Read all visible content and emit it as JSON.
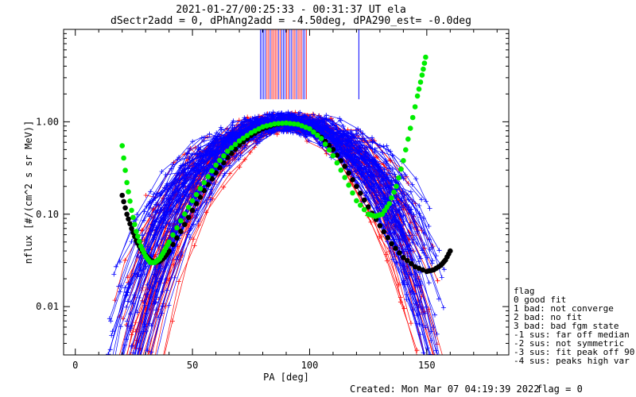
{
  "chart_data": {
    "type": "line",
    "title_line1": "2021-01-27/00:25:33 - 00:31:37 UT ela",
    "title_line2": "dSectr2add = 0, dPhAng2add = -4.50deg, dPA290_est=  -0.0deg",
    "xlabel": "PA [deg]",
    "ylabel": "nflux [#/(cm^2 s sr MeV)]",
    "xlim": [
      -5,
      185
    ],
    "ylim": [
      0.003,
      10
    ],
    "log_y": true,
    "x_ticks": [
      0,
      50,
      100,
      150
    ],
    "y_ticks": [
      {
        "value": 0.01,
        "label": "0.01"
      },
      {
        "value": 0.1,
        "label": "0.10"
      },
      {
        "value": 1,
        "label": "1.00"
      }
    ],
    "bundle_colors": {
      "red": "#ff0000",
      "blue": "#0000ff"
    },
    "peak_normalized_value": 1.0,
    "vertical_marker_pa_range": [
      79,
      99
    ],
    "vertical_marker_outlier_pa": 121,
    "green_fit_curve": {
      "color": "#00ee00",
      "x": [
        20,
        22,
        24,
        26,
        28,
        30,
        32,
        34,
        36,
        38,
        40,
        45,
        50,
        55,
        60,
        65,
        70,
        75,
        80,
        85,
        90,
        95,
        100,
        105,
        110,
        115,
        120,
        125,
        128,
        131,
        134,
        137,
        140,
        143,
        146,
        148,
        149.5
      ],
      "y": [
        0.55,
        0.22,
        0.11,
        0.065,
        0.045,
        0.035,
        0.03,
        0.03,
        0.033,
        0.04,
        0.05,
        0.085,
        0.14,
        0.22,
        0.34,
        0.48,
        0.62,
        0.76,
        0.88,
        0.95,
        0.97,
        0.94,
        0.84,
        0.66,
        0.43,
        0.25,
        0.14,
        0.1,
        0.095,
        0.1,
        0.13,
        0.2,
        0.38,
        0.85,
        1.9,
        3.2,
        5.0
      ]
    },
    "black_fit_curve": {
      "color": "#000000",
      "x": [
        20,
        22,
        24,
        26,
        28,
        30,
        32,
        34,
        36,
        38,
        40,
        45,
        50,
        55,
        60,
        65,
        70,
        75,
        80,
        85,
        90,
        95,
        100,
        105,
        110,
        115,
        120,
        125,
        130,
        135,
        140,
        145,
        150,
        153,
        156,
        158,
        160
      ],
      "y": [
        0.16,
        0.1,
        0.07,
        0.052,
        0.042,
        0.036,
        0.032,
        0.03,
        0.031,
        0.034,
        0.04,
        0.065,
        0.11,
        0.18,
        0.28,
        0.41,
        0.56,
        0.71,
        0.84,
        0.93,
        0.97,
        0.94,
        0.84,
        0.68,
        0.5,
        0.33,
        0.2,
        0.12,
        0.075,
        0.048,
        0.034,
        0.027,
        0.024,
        0.025,
        0.028,
        0.032,
        0.04
      ]
    },
    "flag_legend": {
      "heading": "flag",
      "entries": [
        " 0 good fit",
        " 1 bad: not converge",
        " 2 bad: no fit",
        " 3 bad: bad fgm state",
        "-1 sus: far off median",
        "-2 sus: not symmetric",
        "-3 sus: fit peak off 90",
        "-4 sus: peaks high var"
      ]
    },
    "footer_created": "Created: Mon Mar 07 04:19:39 2022",
    "footer_flag": "flag = 0"
  }
}
